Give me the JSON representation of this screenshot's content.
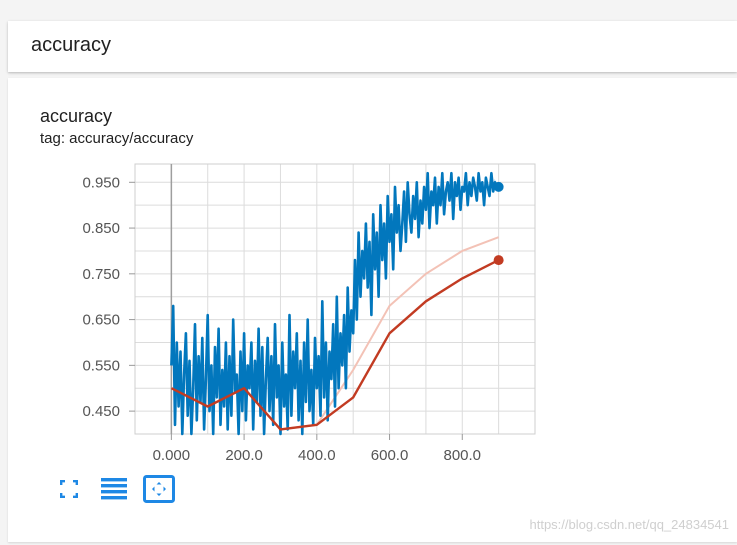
{
  "header": {
    "title": "accuracy"
  },
  "card": {
    "title": "accuracy",
    "tag": "tag: accuracy/accuracy"
  },
  "controls": {
    "icons": [
      "fullscreen-icon",
      "list-icon",
      "fit-domain-icon"
    ],
    "color": "#1e88e5"
  },
  "watermark": "https://blog.csdn.net/qq_24834541",
  "colors": {
    "raw_blue": "#0277bd",
    "raw_blue_light": "#a6cfe8",
    "red": "#c23b22",
    "red_light": "#f3c2b6"
  },
  "chart_data": {
    "type": "line",
    "title": "",
    "xlabel": "",
    "ylabel": "",
    "x_ticks": [
      "0.000",
      "200.0",
      "400.0",
      "600.0",
      "800.0"
    ],
    "y_ticks": [
      "0.450",
      "0.550",
      "0.650",
      "0.750",
      "0.850",
      "0.950"
    ],
    "xlim": [
      -100,
      1000
    ],
    "ylim": [
      0.4,
      0.99
    ],
    "grid": true,
    "series": [
      {
        "x": [
          0,
          5,
          10,
          15,
          20,
          25,
          30,
          35,
          40,
          45,
          50,
          55,
          60,
          65,
          70,
          75,
          80,
          85,
          90,
          95,
          100,
          105,
          110,
          115,
          120,
          125,
          130,
          135,
          140,
          145,
          150,
          155,
          160,
          165,
          170,
          175,
          180,
          185,
          190,
          195,
          200,
          205,
          210,
          215,
          220,
          225,
          230,
          235,
          240,
          245,
          250,
          255,
          260,
          265,
          270,
          275,
          280,
          285,
          290,
          295,
          300,
          305,
          310,
          315,
          320,
          325,
          330,
          335,
          340,
          345,
          350,
          355,
          360,
          365,
          370,
          375,
          380,
          385,
          390,
          395,
          400,
          405,
          410,
          415,
          420,
          425,
          430,
          435,
          440,
          445,
          450,
          455,
          460,
          465,
          470,
          475,
          480,
          485,
          490,
          495,
          500,
          505,
          510,
          515,
          520,
          525,
          530,
          535,
          540,
          545,
          550,
          555,
          560,
          565,
          570,
          575,
          580,
          585,
          590,
          595,
          600,
          605,
          610,
          615,
          620,
          625,
          630,
          635,
          640,
          645,
          650,
          655,
          660,
          665,
          670,
          675,
          680,
          685,
          690,
          695,
          700,
          705,
          710,
          715,
          720,
          725,
          730,
          735,
          740,
          745,
          750,
          755,
          760,
          765,
          770,
          775,
          780,
          785,
          790,
          795,
          800,
          805,
          810,
          815,
          820,
          825,
          830,
          835,
          840,
          845,
          850,
          855,
          860,
          865,
          870,
          875,
          880,
          885,
          890,
          895,
          900
        ],
        "values": [
          0.55,
          0.68,
          0.42,
          0.6,
          0.46,
          0.58,
          0.4,
          0.53,
          0.62,
          0.44,
          0.56,
          0.4,
          0.5,
          0.64,
          0.43,
          0.57,
          0.47,
          0.61,
          0.41,
          0.52,
          0.66,
          0.45,
          0.55,
          0.4,
          0.59,
          0.48,
          0.63,
          0.42,
          0.54,
          0.46,
          0.6,
          0.41,
          0.57,
          0.44,
          0.65,
          0.49,
          0.53,
          0.4,
          0.58,
          0.45,
          0.62,
          0.43,
          0.55,
          0.5,
          0.6,
          0.41,
          0.56,
          0.47,
          0.63,
          0.44,
          0.59,
          0.4,
          0.52,
          0.61,
          0.45,
          0.57,
          0.42,
          0.64,
          0.48,
          0.55,
          0.4,
          0.6,
          0.46,
          0.53,
          0.41,
          0.66,
          0.44,
          0.58,
          0.5,
          0.62,
          0.43,
          0.56,
          0.4,
          0.6,
          0.47,
          0.65,
          0.45,
          0.54,
          0.42,
          0.61,
          0.5,
          0.57,
          0.44,
          0.69,
          0.48,
          0.6,
          0.43,
          0.58,
          0.52,
          0.64,
          0.46,
          0.7,
          0.5,
          0.62,
          0.55,
          0.66,
          0.5,
          0.72,
          0.58,
          0.67,
          0.62,
          0.78,
          0.65,
          0.84,
          0.7,
          0.8,
          0.74,
          0.86,
          0.72,
          0.82,
          0.66,
          0.88,
          0.76,
          0.84,
          0.7,
          0.9,
          0.78,
          0.86,
          0.74,
          0.92,
          0.82,
          0.88,
          0.76,
          0.94,
          0.84,
          0.9,
          0.8,
          0.86,
          0.93,
          0.82,
          0.95,
          0.88,
          0.84,
          0.92,
          0.87,
          0.95,
          0.83,
          0.91,
          0.86,
          0.94,
          0.89,
          0.97,
          0.85,
          0.93,
          0.9,
          0.96,
          0.86,
          0.94,
          0.9,
          0.97,
          0.88,
          0.93,
          0.95,
          0.91,
          0.97,
          0.87,
          0.95,
          0.92,
          0.96,
          0.89,
          0.94,
          0.93,
          0.97,
          0.9,
          0.95,
          0.92,
          0.96,
          0.94,
          0.91,
          0.97,
          0.93,
          0.95,
          0.9,
          0.96,
          0.94,
          0.92,
          0.97,
          0.93,
          0.95,
          0.94,
          0.94
        ]
      },
      {
        "x": [
          0,
          100,
          200,
          300,
          400,
          500,
          600,
          700,
          800,
          900
        ],
        "values": [
          0.5,
          0.46,
          0.5,
          0.41,
          0.42,
          0.48,
          0.62,
          0.69,
          0.74,
          0.78
        ]
      }
    ]
  }
}
